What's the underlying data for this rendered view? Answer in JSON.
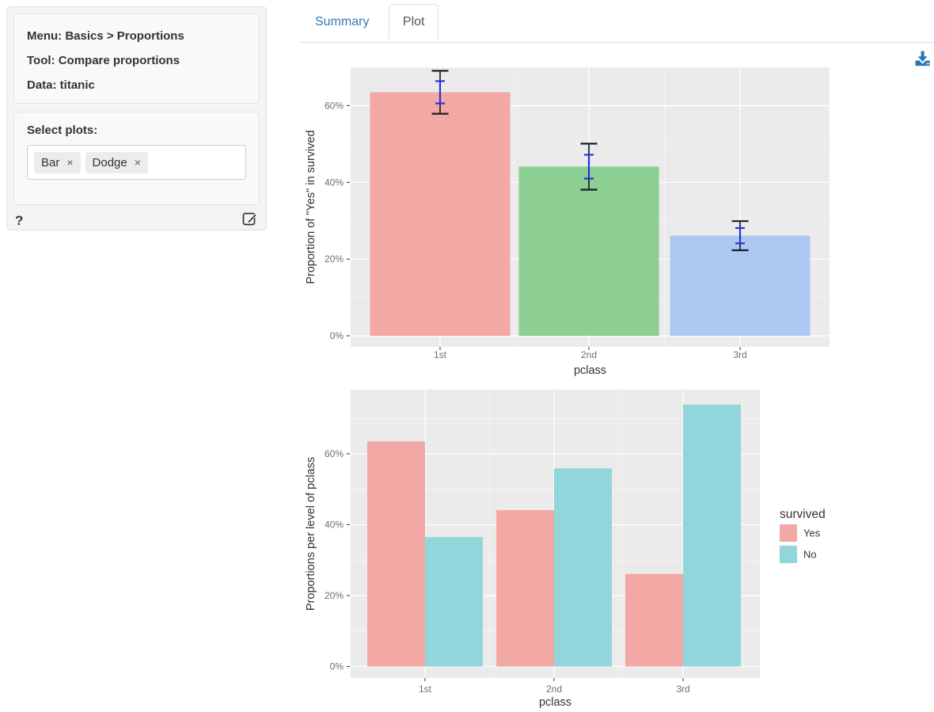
{
  "sidebar": {
    "info": {
      "menu": "Menu: Basics > Proportions",
      "tool": "Tool: Compare proportions",
      "data": "Data: titanic"
    },
    "select_plots": {
      "label": "Select plots:",
      "tags": [
        {
          "label": "Bar"
        },
        {
          "label": "Dodge"
        }
      ],
      "remove_symbol": "×"
    },
    "help_label": "?"
  },
  "tabs": [
    {
      "label": "Summary",
      "active": false
    },
    {
      "label": "Plot",
      "active": true
    }
  ],
  "colors": {
    "accent_link": "#337ab7",
    "download_icon": "#2777b8",
    "panel_bg": "#ebebeb",
    "grid_major": "#ffffff",
    "tick_text": "#6e6e6e",
    "axis_title": "#333333",
    "ci_error_bar": "#1f1f1f",
    "se_error_bar": "#2b31dd"
  },
  "chart_data": [
    {
      "type": "bar",
      "title": "",
      "categories": [
        "1st",
        "2nd",
        "3rd"
      ],
      "values": [
        63.5,
        44.1,
        26.1
      ],
      "conf_int_95": [
        [
          57.9,
          69.1
        ],
        [
          38.1,
          50.1
        ],
        [
          22.3,
          29.9
        ]
      ],
      "std_err_int": [
        [
          60.6,
          66.4
        ],
        [
          41.0,
          47.2
        ],
        [
          24.1,
          28.1
        ]
      ],
      "bar_colors": [
        "#f2a8a4",
        "#8dce92",
        "#adc8f3"
      ],
      "xlabel": "pclass",
      "ylabel": "Proportion of \"Yes\" in survived",
      "yticks": [
        0,
        20,
        40,
        60
      ],
      "ytick_labels": [
        "0%",
        "20%",
        "40%",
        "60%"
      ],
      "ylim": [
        0,
        70
      ],
      "grid": true,
      "legend_position": "none"
    },
    {
      "type": "bar",
      "title": "",
      "categories": [
        "1st",
        "2nd",
        "3rd"
      ],
      "series": [
        {
          "name": "Yes",
          "color": "#f2a8a4",
          "values": [
            63.5,
            44.1,
            26.1
          ]
        },
        {
          "name": "No",
          "color": "#90d6da",
          "values": [
            36.5,
            55.9,
            73.9
          ]
        }
      ],
      "xlabel": "pclass",
      "ylabel": "Proportions per level of pclass",
      "yticks": [
        0,
        20,
        40,
        60
      ],
      "ytick_labels": [
        "0%",
        "20%",
        "40%",
        "60%"
      ],
      "ylim": [
        0,
        78
      ],
      "grid": true,
      "legend": {
        "title": "survived",
        "position": "right"
      }
    }
  ]
}
